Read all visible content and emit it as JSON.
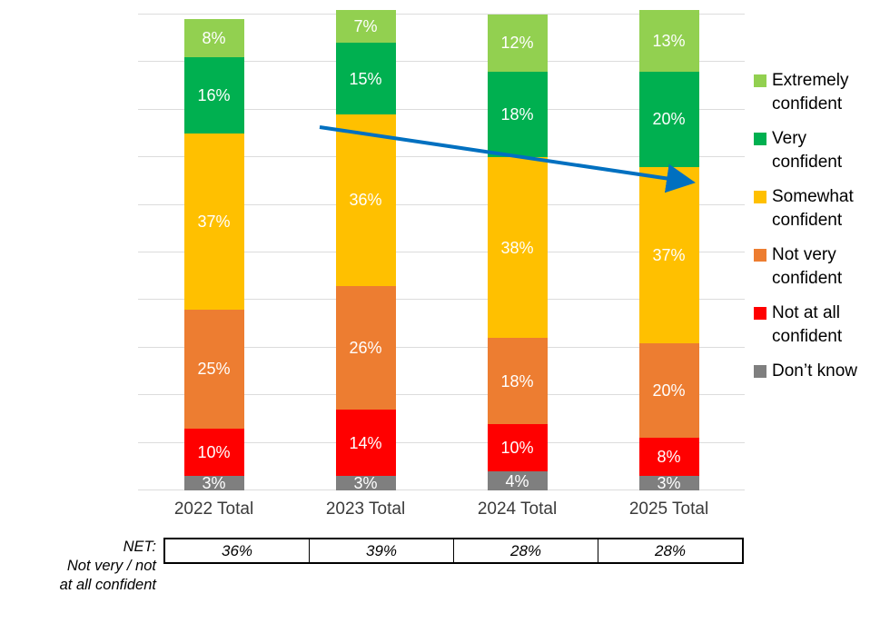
{
  "chart_data": {
    "type": "bar",
    "stacked": true,
    "title": "",
    "categories": [
      "2022 Total",
      "2023 Total",
      "2024 Total",
      "2025 Total"
    ],
    "series": [
      {
        "name": "Extremely confident",
        "color": "#92D050",
        "values": [
          8,
          7,
          12,
          13
        ]
      },
      {
        "name": "Very confident",
        "color": "#00B050",
        "values": [
          16,
          15,
          18,
          20
        ]
      },
      {
        "name": "Somewhat confident",
        "color": "#FFC000",
        "values": [
          37,
          36,
          38,
          37
        ]
      },
      {
        "name": "Not very confident",
        "color": "#ED7D31",
        "values": [
          25,
          26,
          18,
          20
        ]
      },
      {
        "name": "Not at all confident",
        "color": "#FF0000",
        "values": [
          10,
          14,
          10,
          8
        ]
      },
      {
        "name": "Don’t know",
        "color": "#7F7F7F",
        "values": [
          3,
          3,
          4,
          3
        ]
      }
    ],
    "value_suffix": "%",
    "ylim": [
      0,
      100
    ],
    "grid": true,
    "legend_position": "right",
    "net": {
      "label": "NET:\nNot very / not\nat all confident",
      "values": [
        "36%",
        "39%",
        "28%",
        "28%"
      ]
    },
    "annotation": {
      "type": "trend-arrow",
      "color": "#0070C0",
      "direction": "down-right"
    }
  }
}
